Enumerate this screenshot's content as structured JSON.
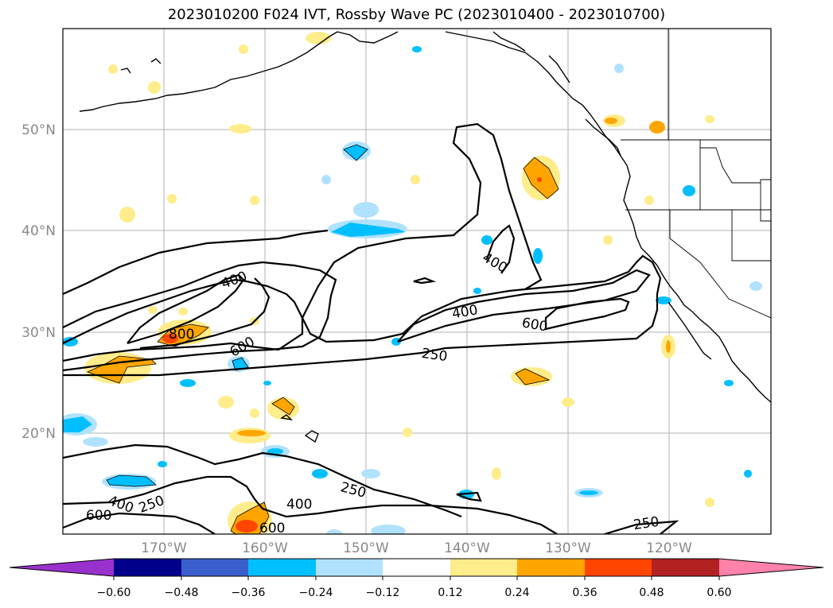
{
  "title": "2023010200 F024 IVT, Rossby Wave PC (2023010400 - 2023010700)",
  "lat_labels": [
    "50°N",
    "40°N",
    "30°N",
    "20°N"
  ],
  "lon_labels": [
    "170°W",
    "160°W",
    "150°W",
    "140°W",
    "130°W",
    "120°W"
  ],
  "colorbar": {
    "ticks": [
      "−0.60",
      "−0.48",
      "−0.36",
      "−0.24",
      "−0.12",
      "0.12",
      "0.24",
      "0.36",
      "0.48",
      "0.60"
    ],
    "colors": [
      "#9932cc",
      "#00008b",
      "#3a5fcd",
      "#00bfff",
      "#b0e2ff",
      "#ffffff",
      "#ffec8b",
      "#ffa500",
      "#ff4500",
      "#b22222",
      "#ff82ab"
    ]
  },
  "contour_labels": [
    "400",
    "800",
    "600",
    "400",
    "400",
    "600",
    "250",
    "400",
    "250",
    "600",
    "400",
    "250",
    "600",
    "250"
  ]
}
